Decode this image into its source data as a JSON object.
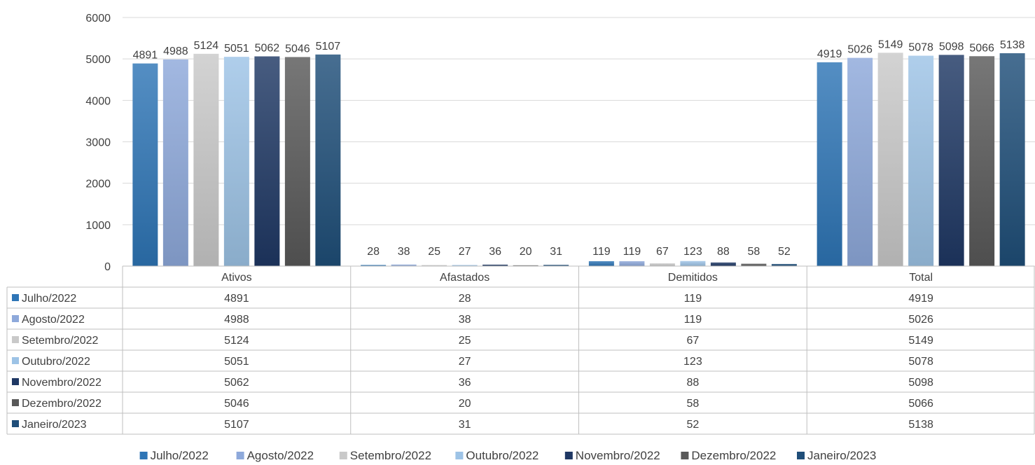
{
  "chart_data": {
    "type": "bar",
    "categories": [
      "Ativos",
      "Afastados",
      "Demitidos",
      "Total"
    ],
    "series": [
      {
        "name": "Julho/2022",
        "values": [
          4891,
          28,
          119,
          4919
        ],
        "color": "#2E75B6"
      },
      {
        "name": "Agosto/2022",
        "values": [
          4988,
          38,
          119,
          5026
        ],
        "color": "#8EA9DB"
      },
      {
        "name": "Setembro/2022",
        "values": [
          5124,
          25,
          67,
          5149
        ],
        "color": "#C9C9C9"
      },
      {
        "name": "Outubro/2022",
        "values": [
          5051,
          27,
          123,
          5078
        ],
        "color": "#9DC3E6"
      },
      {
        "name": "Novembro/2022",
        "values": [
          5062,
          36,
          88,
          5098
        ],
        "color": "#1F3864"
      },
      {
        "name": "Dezembro/2022",
        "values": [
          5046,
          20,
          58,
          5066
        ],
        "color": "#595959"
      },
      {
        "name": "Janeiro/2023",
        "values": [
          5107,
          31,
          52,
          5138
        ],
        "color": "#1F4E79"
      }
    ],
    "ylim": [
      0,
      6000
    ],
    "yticks": [
      0,
      1000,
      2000,
      3000,
      4000,
      5000,
      6000
    ],
    "grid": true,
    "data_table": true,
    "legend_position": "bottom"
  }
}
